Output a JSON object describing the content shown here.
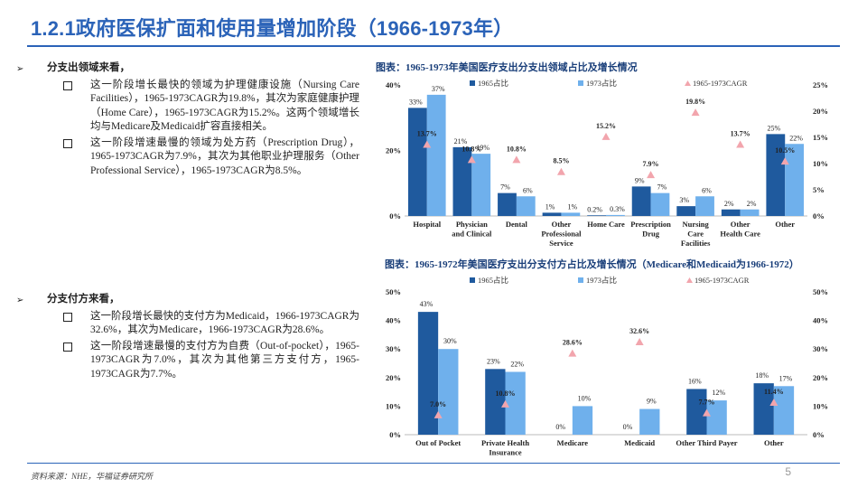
{
  "page_title": "1.2.1政府医保扩面和使用量增加阶段（1966-1973年）",
  "sections": [
    {
      "heading": "分支出领域来看，",
      "bullets": [
        "这一阶段增长最快的领域为护理健康设施（Nursing Care Facilities），1965-1973CAGR为19.8%，其次为家庭健康护理（Home Care），1965-1973CAGR为15.2%。这两个领域增长均与Medicare及Medicaid扩容直接相关。",
        "这一阶段增速最慢的领域为处方药（Prescription Drug），1965-1973CAGR为7.9%，其次为其他职业护理服务（Other Professional Service），1965-1973CAGR为8.5%。"
      ]
    },
    {
      "heading": "分支付方来看，",
      "bullets": [
        "这一阶段增长最快的支付方为Medicaid，1966-1973CAGR为32.6%，其次为Medicare，1966-1973CAGR为28.6%。",
        "这一阶段增速最慢的支付方为自费（Out-of-pocket），1965-1973CAGR为7.0%，其次为其他第三方支付方，1965-1973CAGR为7.7%。"
      ]
    }
  ],
  "footer": {
    "source": "资料来源：NHE，华福证券研究所",
    "page_number": "5"
  },
  "chart_data": [
    {
      "type": "bar",
      "title": "图表：1965-1973年美国医疗支出分支出领域占比及增长情况",
      "categories": [
        "Hospital",
        "Physician and Clinical",
        "Dental",
        "Other Professional Service",
        "Home Care",
        "Prescription Drug",
        "Nursing Care Facilities",
        "Other Health Care",
        "Other"
      ],
      "category_lines": [
        [
          "Hospital"
        ],
        [
          "Physician",
          "and Clinical"
        ],
        [
          "Dental"
        ],
        [
          "Other",
          "Professional",
          "Service"
        ],
        [
          "Home Care"
        ],
        [
          "Prescription",
          "Drug"
        ],
        [
          "Nursing",
          "Care",
          "Facilities"
        ],
        [
          "Other",
          "Health Care"
        ],
        [
          "Other"
        ]
      ],
      "series": [
        {
          "name": "1965占比",
          "kind": "bar",
          "color": "#1f5a9e",
          "values": [
            33,
            21,
            7,
            1,
            0.2,
            9,
            3,
            2,
            25
          ],
          "labels": [
            "33%",
            "21%",
            "7%",
            "1%",
            "0.2%",
            "9%",
            "3%",
            "2%",
            "25%"
          ]
        },
        {
          "name": "1973占比",
          "kind": "bar",
          "color": "#6fb0ec",
          "values": [
            37,
            19,
            6,
            1,
            0.3,
            7,
            6,
            2,
            22
          ],
          "labels": [
            "37%",
            "19%",
            "6%",
            "1%",
            "0.3%",
            "7%",
            "6%",
            "2%",
            "22%"
          ]
        },
        {
          "name": "1965-1973CAGR",
          "kind": "marker",
          "color": "#f2a5ad",
          "values": [
            13.7,
            10.8,
            10.8,
            8.5,
            15.2,
            7.9,
            19.8,
            13.7,
            10.5
          ],
          "labels": [
            "13.7%",
            "10.8%",
            "10.8%",
            "8.5%",
            "15.2%",
            "7.9%",
            "19.8%",
            "13.7%",
            "10.5%"
          ]
        }
      ],
      "y_left": {
        "min": 0,
        "max": 40,
        "ticks": [
          "0%",
          "20%",
          "40%"
        ]
      },
      "y_right": {
        "min": 0,
        "max": 25,
        "ticks": [
          "0%",
          "5%",
          "10%",
          "15%",
          "20%",
          "25%"
        ]
      },
      "legend": "top"
    },
    {
      "type": "bar",
      "title": "图表：1965-1972年美国医疗支出分支付方占比及增长情况（Medicare和Medicaid为1966-1972）",
      "categories": [
        "Out of Pocket",
        "Private Health Insurance",
        "Medicare",
        "Medicaid",
        "Other Third Payer",
        "Other"
      ],
      "category_lines": [
        [
          "Out of Pocket"
        ],
        [
          "Private Health",
          "Insurance"
        ],
        [
          "Medicare"
        ],
        [
          "Medicaid"
        ],
        [
          "Other Third Payer"
        ],
        [
          "Other"
        ]
      ],
      "series": [
        {
          "name": "1965占比",
          "kind": "bar",
          "color": "#1f5a9e",
          "values": [
            43,
            23,
            0,
            0,
            16,
            18
          ],
          "labels": [
            "43%",
            "23%",
            "0%",
            "0%",
            "16%",
            "18%"
          ]
        },
        {
          "name": "1973占比",
          "kind": "bar",
          "color": "#6fb0ec",
          "values": [
            30,
            22,
            10,
            9,
            12,
            17
          ],
          "labels": [
            "30%",
            "22%",
            "10%",
            "9%",
            "12%",
            "17%"
          ]
        },
        {
          "name": "1965-1973CAGR",
          "kind": "marker",
          "color": "#f2a5ad",
          "values": [
            7.0,
            10.8,
            28.6,
            32.6,
            7.7,
            11.4
          ],
          "labels": [
            "7.0%",
            "10.8%",
            "28.6%",
            "32.6%",
            "7.7%",
            "11.4%"
          ]
        }
      ],
      "y_left": {
        "min": 0,
        "max": 50,
        "ticks": [
          "0%",
          "10%",
          "20%",
          "30%",
          "40%",
          "50%"
        ]
      },
      "y_right": {
        "min": 0,
        "max": 50,
        "ticks": [
          "0%",
          "10%",
          "20%",
          "30%",
          "40%",
          "50%"
        ]
      },
      "legend": "top"
    }
  ]
}
